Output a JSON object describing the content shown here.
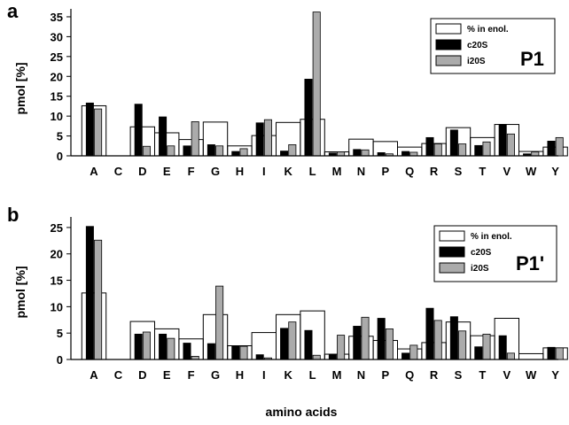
{
  "xlabel": "amino acids",
  "chart_data": [
    {
      "type": "bar",
      "panel": "a",
      "tag": "P1",
      "ylabel": "pmol [%]",
      "ylim": [
        0,
        37
      ],
      "yticks": [
        0,
        5,
        10,
        15,
        20,
        25,
        30,
        35
      ],
      "grid": false,
      "legend": "top-right",
      "categories": [
        "A",
        "C",
        "D",
        "E",
        "F",
        "G",
        "H",
        "I",
        "K",
        "L",
        "M",
        "N",
        "P",
        "Q",
        "R",
        "S",
        "T",
        "V",
        "W",
        "Y"
      ],
      "series": [
        {
          "name": "% in enol.",
          "style": "outline",
          "values": [
            12.6,
            0,
            7.3,
            5.8,
            4.1,
            8.5,
            2.5,
            5.1,
            8.4,
            9.2,
            1.0,
            4.2,
            3.6,
            2.2,
            3.1,
            7.1,
            4.6,
            7.9,
            1.1,
            2.2
          ]
        },
        {
          "name": "c20S",
          "style": "black",
          "values": [
            13.3,
            0,
            13.0,
            9.8,
            2.5,
            2.8,
            1.1,
            8.3,
            1.2,
            19.3,
            0.7,
            1.6,
            0.8,
            1.1,
            4.6,
            6.5,
            2.6,
            7.9,
            0.5,
            3.7
          ]
        },
        {
          "name": "i20S",
          "style": "gray",
          "values": [
            11.8,
            0,
            2.4,
            2.5,
            8.6,
            2.5,
            1.8,
            9.1,
            2.8,
            36.2,
            1.0,
            1.5,
            0.5,
            0.9,
            3.0,
            3.0,
            3.5,
            5.5,
            1.0,
            4.6
          ]
        }
      ]
    },
    {
      "type": "bar",
      "panel": "b",
      "tag": "P1'",
      "ylabel": "pmol [%]",
      "ylim": [
        0,
        27
      ],
      "yticks": [
        0,
        5,
        10,
        15,
        20,
        25
      ],
      "grid": false,
      "legend": "top-right",
      "categories": [
        "A",
        "C",
        "D",
        "E",
        "F",
        "G",
        "H",
        "I",
        "K",
        "L",
        "M",
        "N",
        "P",
        "Q",
        "R",
        "S",
        "T",
        "V",
        "W",
        "Y"
      ],
      "series": [
        {
          "name": "% in enol.",
          "style": "outline",
          "values": [
            12.6,
            0,
            7.2,
            5.8,
            3.9,
            8.5,
            2.6,
            5.1,
            8.5,
            9.2,
            1.0,
            4.4,
            3.6,
            2.0,
            3.2,
            7.1,
            4.5,
            7.8,
            1.1,
            2.2
          ]
        },
        {
          "name": "c20S",
          "style": "black",
          "values": [
            25.2,
            0,
            4.8,
            4.8,
            3.1,
            3.0,
            2.6,
            0.9,
            5.9,
            5.5,
            1.0,
            6.3,
            7.8,
            1.2,
            9.7,
            8.1,
            2.4,
            4.5,
            0,
            2.3
          ]
        },
        {
          "name": "i20S",
          "style": "gray",
          "values": [
            22.6,
            0,
            5.2,
            4.0,
            0.6,
            13.9,
            2.5,
            0.3,
            7.1,
            0.8,
            4.6,
            8.0,
            5.8,
            2.7,
            7.4,
            5.4,
            4.8,
            1.2,
            0,
            2.2
          ]
        }
      ]
    }
  ]
}
